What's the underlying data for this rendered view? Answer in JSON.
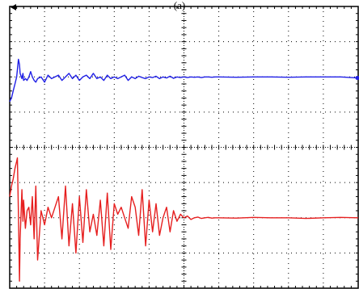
{
  "figure": {
    "panel_label": "(a)"
  },
  "chart_data": {
    "type": "line",
    "grid": true,
    "grid_divisions": {
      "x": 10,
      "y": 8
    },
    "x": [
      0.0,
      0.05,
      0.1,
      0.15,
      0.2,
      0.22,
      0.25,
      0.28,
      0.3,
      0.35,
      0.38,
      0.4,
      0.45,
      0.5,
      0.55,
      0.6,
      0.65,
      0.7,
      0.75,
      0.8,
      0.9,
      1.0,
      1.1,
      1.2,
      1.3,
      1.4,
      1.5,
      1.6,
      1.7,
      1.8,
      1.9,
      2.0,
      2.1,
      2.2,
      2.3,
      2.4,
      2.5,
      2.6,
      2.7,
      2.8,
      2.9,
      3.0,
      3.1,
      3.2,
      3.3,
      3.4,
      3.5,
      3.6,
      3.7,
      3.8,
      3.9,
      4.0,
      4.1,
      4.2,
      4.3,
      4.4,
      4.5,
      4.6,
      4.7,
      4.8,
      4.9,
      5.0,
      5.1,
      5.2,
      5.3,
      5.4,
      5.5,
      5.6,
      5.7,
      5.8,
      5.9,
      6.0,
      6.5,
      7.0,
      7.5,
      8.0,
      8.5,
      9.0,
      9.5,
      10.0
    ],
    "series": [
      {
        "color": "#1f1fe6",
        "values": [
          5.3,
          5.4,
          5.6,
          5.8,
          6.0,
          6.2,
          6.5,
          6.35,
          6.1,
          5.95,
          6.1,
          5.9,
          5.95,
          5.9,
          6.0,
          6.15,
          6.0,
          5.9,
          5.85,
          5.95,
          6.0,
          5.85,
          6.05,
          5.95,
          6.0,
          6.05,
          5.9,
          6.0,
          6.1,
          5.95,
          6.05,
          5.9,
          6.0,
          6.05,
          5.95,
          6.1,
          5.95,
          6.0,
          5.9,
          6.05,
          5.95,
          6.0,
          5.95,
          6.0,
          6.05,
          5.9,
          6.0,
          5.95,
          6.02,
          5.98,
          5.95,
          6.0,
          5.98,
          6.02,
          5.95,
          6.0,
          5.97,
          6.02,
          5.96,
          6.0,
          5.98,
          6.0,
          5.98,
          6.0,
          5.99,
          6.0,
          5.98,
          6.0,
          6.0,
          5.99,
          6.0,
          6.0,
          5.99,
          6.0,
          6.0,
          5.99,
          6.0,
          6.0,
          6.0,
          5.97
        ]
      },
      {
        "color": "#e61f1f",
        "values": [
          2.6,
          2.9,
          3.1,
          3.4,
          3.6,
          3.7,
          2.1,
          0.2,
          1.4,
          2.8,
          1.9,
          2.5,
          1.7,
          2.2,
          2.3,
          1.8,
          2.6,
          1.4,
          2.9,
          0.8,
          2.2,
          1.8,
          2.3,
          2.0,
          2.3,
          2.6,
          1.4,
          2.9,
          1.2,
          2.4,
          1.0,
          2.6,
          1.3,
          2.8,
          1.6,
          2.1,
          1.5,
          2.5,
          1.2,
          2.7,
          1.1,
          2.4,
          2.1,
          2.3,
          2.0,
          1.7,
          2.6,
          2.3,
          1.5,
          2.8,
          1.2,
          2.5,
          1.6,
          2.4,
          1.5,
          2.0,
          2.3,
          1.6,
          2.2,
          1.9,
          2.1,
          2.0,
          2.05,
          1.95,
          2.0,
          2.02,
          1.98,
          2.0,
          2.01,
          1.99,
          2.0,
          2.0,
          1.99,
          2.01,
          2.0,
          2.0,
          1.98,
          2.0,
          2.01,
          2.0
        ]
      }
    ],
    "xlim": [
      0,
      10
    ],
    "ylim": [
      0,
      8
    ],
    "title": "",
    "xlabel": "",
    "ylabel": ""
  }
}
